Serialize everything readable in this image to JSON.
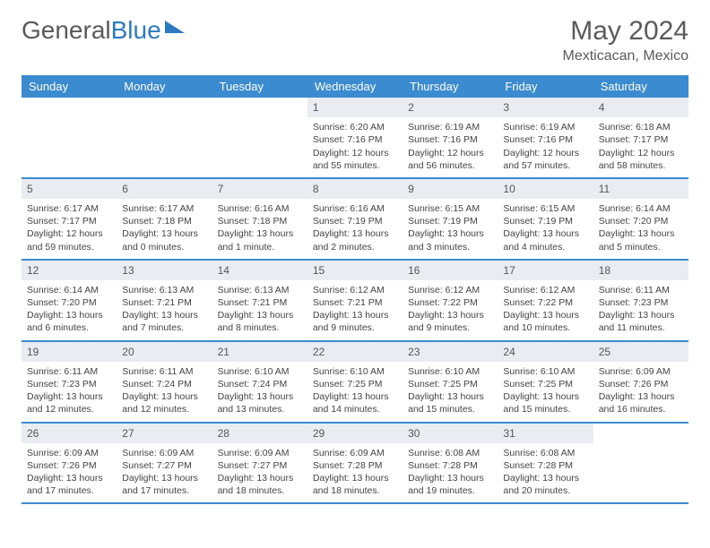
{
  "brand": {
    "part1": "General",
    "part2": "Blue"
  },
  "title": "May 2024",
  "location": "Mexticacan, Mexico",
  "colors": {
    "header_bg": "#3b8bd0",
    "daynum_bg": "#e9edf1",
    "text": "#444444",
    "brand_gray": "#5a5a5a",
    "brand_blue": "#2c7bc0"
  },
  "day_names": [
    "Sunday",
    "Monday",
    "Tuesday",
    "Wednesday",
    "Thursday",
    "Friday",
    "Saturday"
  ],
  "weeks": [
    [
      {
        "n": "",
        "sr": "",
        "ss": "",
        "dl": ""
      },
      {
        "n": "",
        "sr": "",
        "ss": "",
        "dl": ""
      },
      {
        "n": "",
        "sr": "",
        "ss": "",
        "dl": ""
      },
      {
        "n": "1",
        "sr": "Sunrise: 6:20 AM",
        "ss": "Sunset: 7:16 PM",
        "dl": "Daylight: 12 hours and 55 minutes."
      },
      {
        "n": "2",
        "sr": "Sunrise: 6:19 AM",
        "ss": "Sunset: 7:16 PM",
        "dl": "Daylight: 12 hours and 56 minutes."
      },
      {
        "n": "3",
        "sr": "Sunrise: 6:19 AM",
        "ss": "Sunset: 7:16 PM",
        "dl": "Daylight: 12 hours and 57 minutes."
      },
      {
        "n": "4",
        "sr": "Sunrise: 6:18 AM",
        "ss": "Sunset: 7:17 PM",
        "dl": "Daylight: 12 hours and 58 minutes."
      }
    ],
    [
      {
        "n": "5",
        "sr": "Sunrise: 6:17 AM",
        "ss": "Sunset: 7:17 PM",
        "dl": "Daylight: 12 hours and 59 minutes."
      },
      {
        "n": "6",
        "sr": "Sunrise: 6:17 AM",
        "ss": "Sunset: 7:18 PM",
        "dl": "Daylight: 13 hours and 0 minutes."
      },
      {
        "n": "7",
        "sr": "Sunrise: 6:16 AM",
        "ss": "Sunset: 7:18 PM",
        "dl": "Daylight: 13 hours and 1 minute."
      },
      {
        "n": "8",
        "sr": "Sunrise: 6:16 AM",
        "ss": "Sunset: 7:19 PM",
        "dl": "Daylight: 13 hours and 2 minutes."
      },
      {
        "n": "9",
        "sr": "Sunrise: 6:15 AM",
        "ss": "Sunset: 7:19 PM",
        "dl": "Daylight: 13 hours and 3 minutes."
      },
      {
        "n": "10",
        "sr": "Sunrise: 6:15 AM",
        "ss": "Sunset: 7:19 PM",
        "dl": "Daylight: 13 hours and 4 minutes."
      },
      {
        "n": "11",
        "sr": "Sunrise: 6:14 AM",
        "ss": "Sunset: 7:20 PM",
        "dl": "Daylight: 13 hours and 5 minutes."
      }
    ],
    [
      {
        "n": "12",
        "sr": "Sunrise: 6:14 AM",
        "ss": "Sunset: 7:20 PM",
        "dl": "Daylight: 13 hours and 6 minutes."
      },
      {
        "n": "13",
        "sr": "Sunrise: 6:13 AM",
        "ss": "Sunset: 7:21 PM",
        "dl": "Daylight: 13 hours and 7 minutes."
      },
      {
        "n": "14",
        "sr": "Sunrise: 6:13 AM",
        "ss": "Sunset: 7:21 PM",
        "dl": "Daylight: 13 hours and 8 minutes."
      },
      {
        "n": "15",
        "sr": "Sunrise: 6:12 AM",
        "ss": "Sunset: 7:21 PM",
        "dl": "Daylight: 13 hours and 9 minutes."
      },
      {
        "n": "16",
        "sr": "Sunrise: 6:12 AM",
        "ss": "Sunset: 7:22 PM",
        "dl": "Daylight: 13 hours and 9 minutes."
      },
      {
        "n": "17",
        "sr": "Sunrise: 6:12 AM",
        "ss": "Sunset: 7:22 PM",
        "dl": "Daylight: 13 hours and 10 minutes."
      },
      {
        "n": "18",
        "sr": "Sunrise: 6:11 AM",
        "ss": "Sunset: 7:23 PM",
        "dl": "Daylight: 13 hours and 11 minutes."
      }
    ],
    [
      {
        "n": "19",
        "sr": "Sunrise: 6:11 AM",
        "ss": "Sunset: 7:23 PM",
        "dl": "Daylight: 13 hours and 12 minutes."
      },
      {
        "n": "20",
        "sr": "Sunrise: 6:11 AM",
        "ss": "Sunset: 7:24 PM",
        "dl": "Daylight: 13 hours and 12 minutes."
      },
      {
        "n": "21",
        "sr": "Sunrise: 6:10 AM",
        "ss": "Sunset: 7:24 PM",
        "dl": "Daylight: 13 hours and 13 minutes."
      },
      {
        "n": "22",
        "sr": "Sunrise: 6:10 AM",
        "ss": "Sunset: 7:25 PM",
        "dl": "Daylight: 13 hours and 14 minutes."
      },
      {
        "n": "23",
        "sr": "Sunrise: 6:10 AM",
        "ss": "Sunset: 7:25 PM",
        "dl": "Daylight: 13 hours and 15 minutes."
      },
      {
        "n": "24",
        "sr": "Sunrise: 6:10 AM",
        "ss": "Sunset: 7:25 PM",
        "dl": "Daylight: 13 hours and 15 minutes."
      },
      {
        "n": "25",
        "sr": "Sunrise: 6:09 AM",
        "ss": "Sunset: 7:26 PM",
        "dl": "Daylight: 13 hours and 16 minutes."
      }
    ],
    [
      {
        "n": "26",
        "sr": "Sunrise: 6:09 AM",
        "ss": "Sunset: 7:26 PM",
        "dl": "Daylight: 13 hours and 17 minutes."
      },
      {
        "n": "27",
        "sr": "Sunrise: 6:09 AM",
        "ss": "Sunset: 7:27 PM",
        "dl": "Daylight: 13 hours and 17 minutes."
      },
      {
        "n": "28",
        "sr": "Sunrise: 6:09 AM",
        "ss": "Sunset: 7:27 PM",
        "dl": "Daylight: 13 hours and 18 minutes."
      },
      {
        "n": "29",
        "sr": "Sunrise: 6:09 AM",
        "ss": "Sunset: 7:28 PM",
        "dl": "Daylight: 13 hours and 18 minutes."
      },
      {
        "n": "30",
        "sr": "Sunrise: 6:08 AM",
        "ss": "Sunset: 7:28 PM",
        "dl": "Daylight: 13 hours and 19 minutes."
      },
      {
        "n": "31",
        "sr": "Sunrise: 6:08 AM",
        "ss": "Sunset: 7:28 PM",
        "dl": "Daylight: 13 hours and 20 minutes."
      },
      {
        "n": "",
        "sr": "",
        "ss": "",
        "dl": ""
      }
    ]
  ]
}
